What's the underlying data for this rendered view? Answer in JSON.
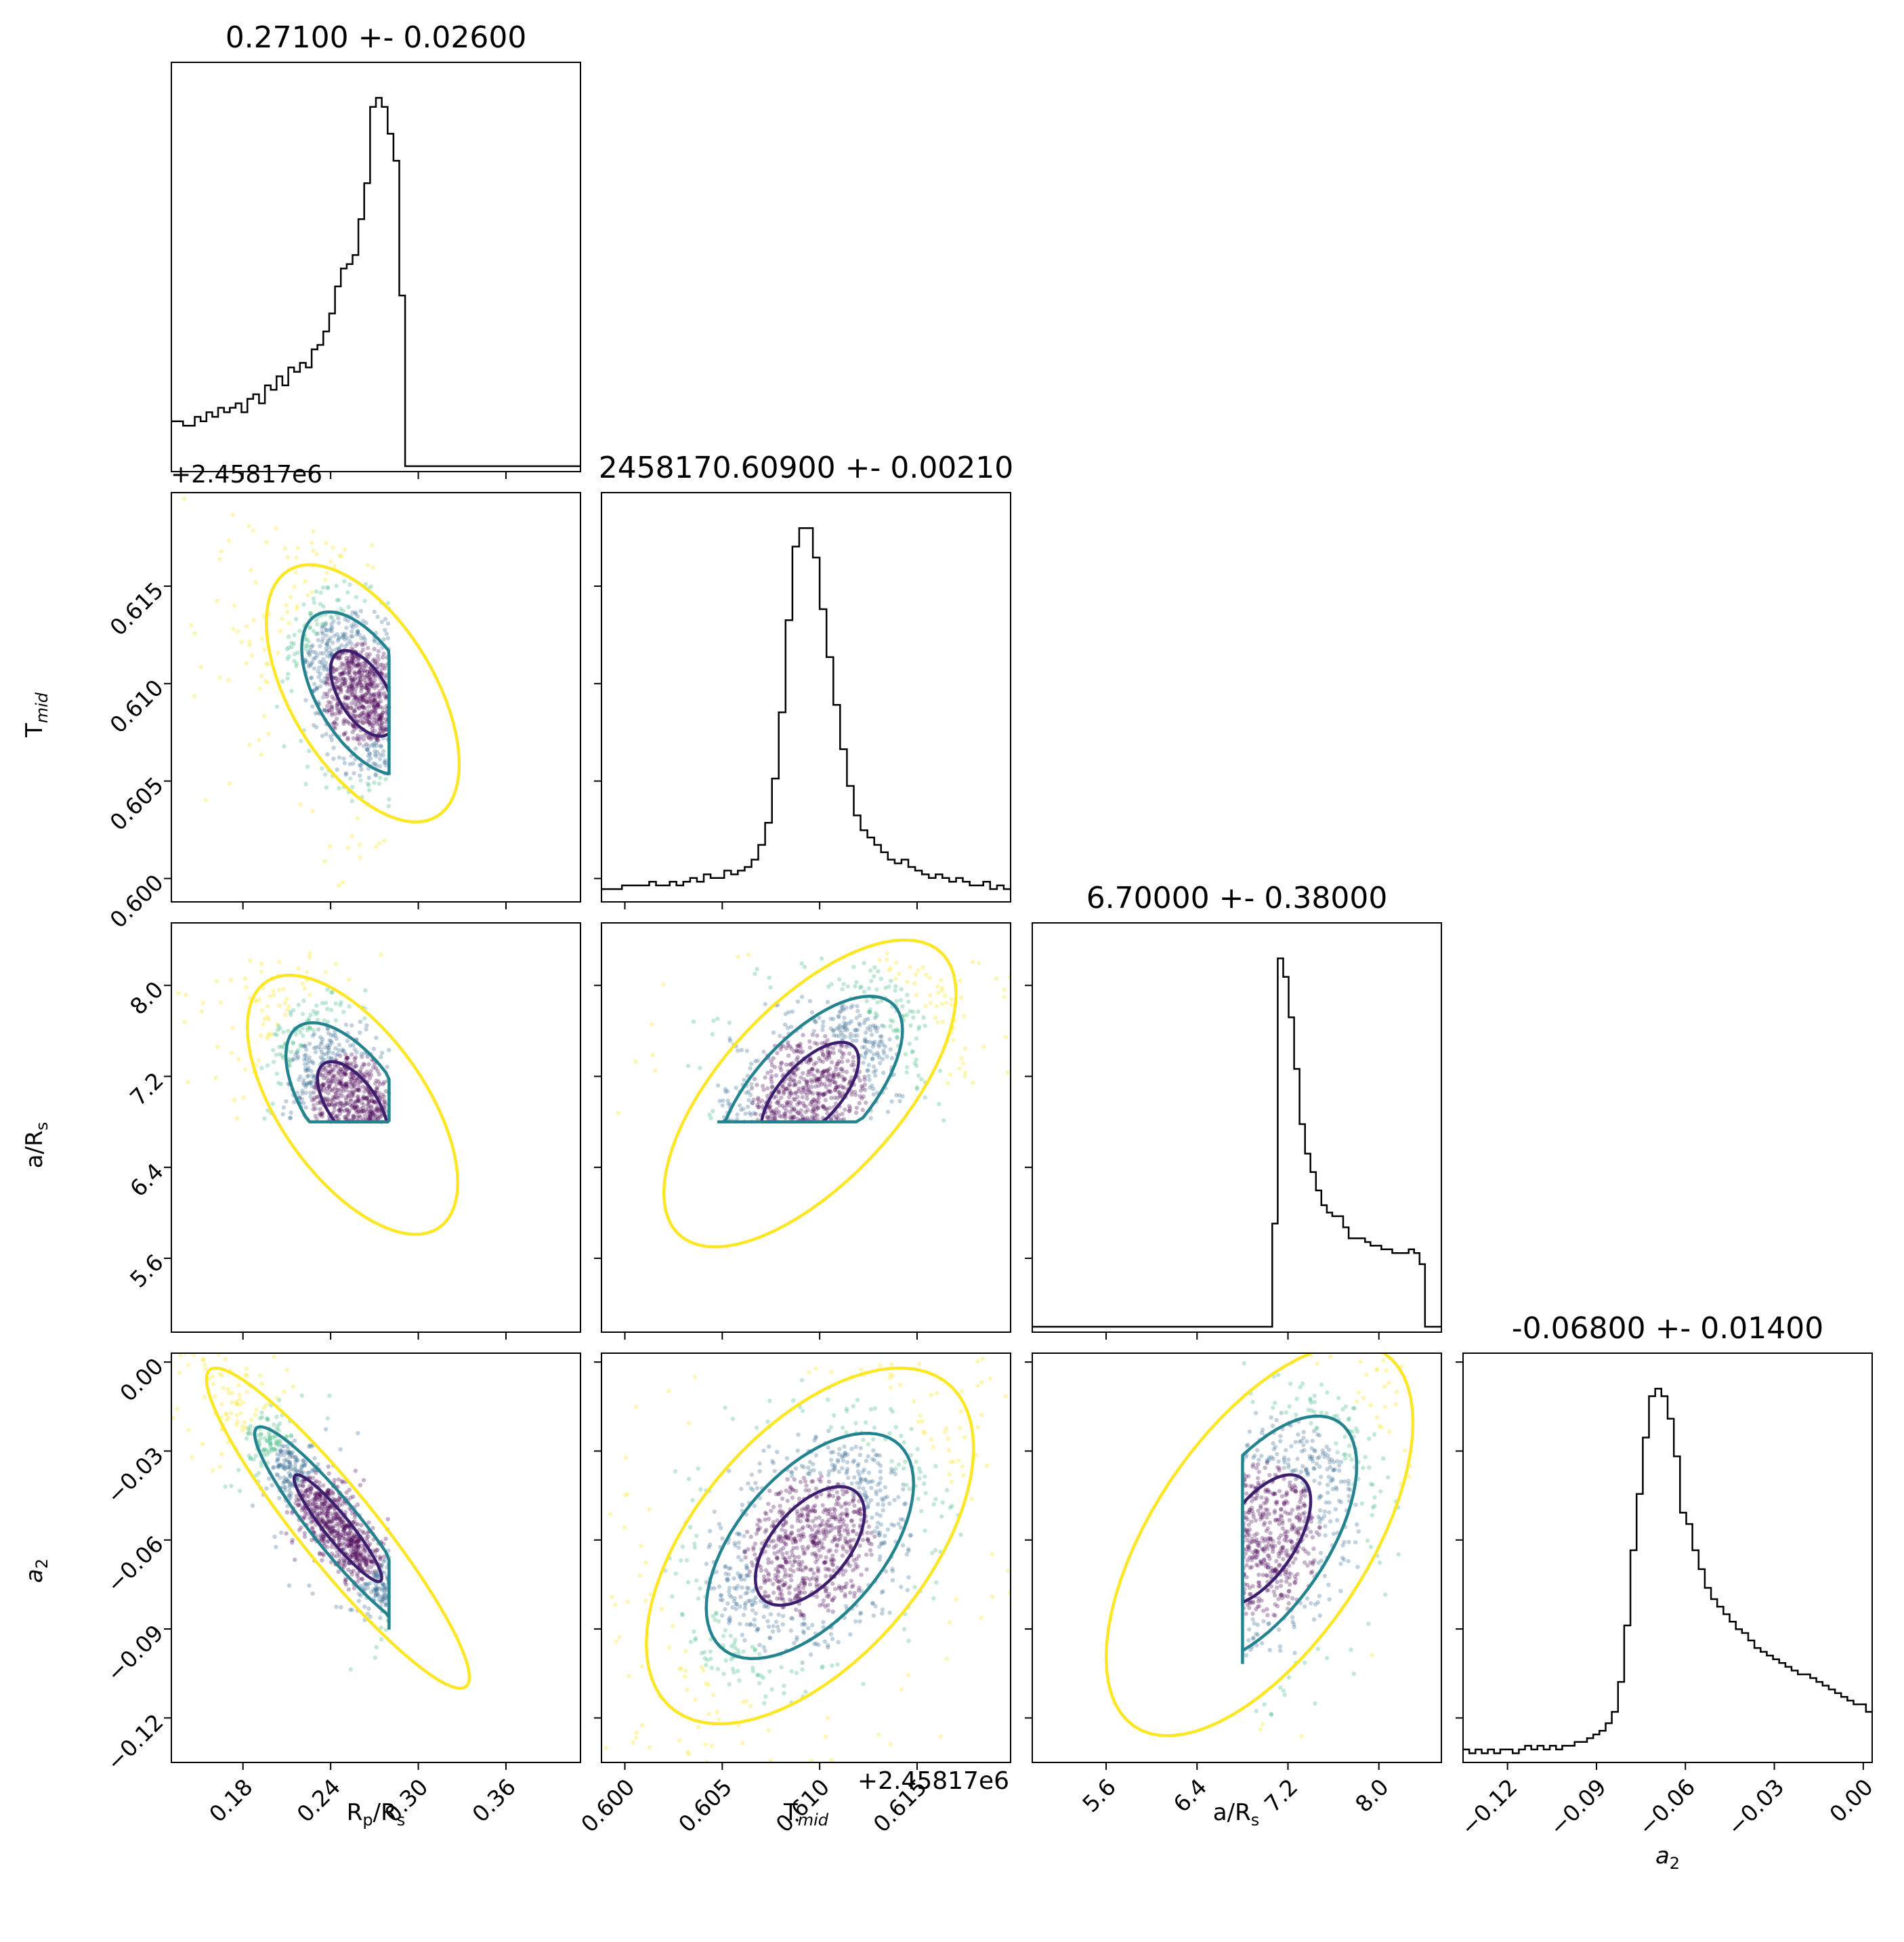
{
  "chart_data": {
    "type": "corner",
    "parameters": [
      "R_p/R_s",
      "T_mid",
      "a/R_s",
      "a_2"
    ],
    "axis_labels": [
      {
        "main": "R",
        "sub": "p",
        "tail": "/R",
        "sub2": "s"
      },
      {
        "main": "T",
        "sub": "mid",
        "tail": "",
        "sub2": ""
      },
      {
        "main": "a/R",
        "sub": "s",
        "tail": "",
        "sub2": ""
      },
      {
        "main": "a",
        "sub": "2",
        "tail": "",
        "sub2": ""
      }
    ],
    "titles": [
      "0.27100 +- 0.02600",
      "2458170.60900 +- 0.00210",
      "6.70000 +- 0.38000",
      "-0.06800 +- 0.01400"
    ],
    "offset_text": "+2.45817e6",
    "ranges": [
      [
        0.131,
        0.411
      ],
      [
        0.5988,
        0.6198
      ],
      [
        4.95,
        8.55
      ],
      [
        -0.135,
        0.003
      ]
    ],
    "ticks": [
      {
        "values": [
          0.18,
          0.24,
          0.3,
          0.36
        ],
        "labels": [
          "0.18",
          "0.24",
          "0.30",
          "0.36"
        ]
      },
      {
        "values": [
          0.6,
          0.605,
          0.61,
          0.615
        ],
        "labels": [
          "0.600",
          "0.605",
          "0.610",
          "0.615"
        ]
      },
      {
        "values": [
          5.6,
          6.4,
          7.2,
          8.0
        ],
        "labels": [
          "5.6",
          "6.4",
          "7.2",
          "8.0"
        ]
      },
      {
        "values": [
          -0.12,
          -0.09,
          -0.06,
          -0.03,
          0.0
        ],
        "labels": [
          "−0.12",
          "−0.09",
          "−0.06",
          "−0.03",
          "0.00"
        ]
      }
    ],
    "histograms": [
      {
        "x0": 0.131,
        "x1": 0.411,
        "counts": [
          10,
          10,
          9,
          9,
          11,
          10,
          12,
          11,
          13,
          12,
          13,
          14,
          12,
          15,
          16,
          14,
          18,
          17,
          20,
          18,
          22,
          21,
          23,
          22,
          26,
          27,
          30,
          34,
          40,
          44,
          45,
          47,
          55,
          63,
          80,
          82,
          80,
          74,
          68,
          38,
          0,
          0,
          0,
          0,
          0,
          0,
          0,
          0,
          0,
          0,
          0,
          0,
          0,
          0,
          0,
          0,
          0,
          0,
          0,
          0,
          0,
          0,
          0,
          0,
          0,
          0,
          0,
          0,
          0,
          0
        ]
      },
      {
        "x0": 0.5988,
        "x1": 0.6198,
        "counts": [
          2,
          2,
          2,
          3,
          3,
          3,
          3,
          4,
          3,
          3,
          4,
          3,
          4,
          5,
          4,
          6,
          5,
          5,
          7,
          6,
          7,
          8,
          10,
          14,
          20,
          32,
          50,
          75,
          95,
          100,
          100,
          92,
          78,
          65,
          52,
          40,
          30,
          22,
          18,
          16,
          14,
          12,
          10,
          9,
          10,
          8,
          7,
          6,
          5,
          6,
          5,
          4,
          5,
          4,
          3,
          3,
          4,
          2,
          3,
          2
        ]
      },
      {
        "x0": 4.95,
        "x1": 8.55,
        "counts": [
          0,
          0,
          0,
          0,
          0,
          0,
          0,
          0,
          0,
          0,
          0,
          0,
          0,
          0,
          0,
          0,
          0,
          0,
          0,
          0,
          0,
          0,
          0,
          0,
          0,
          0,
          0,
          0,
          0,
          0,
          0,
          0,
          0,
          0,
          0,
          0,
          0,
          0,
          0,
          0,
          0,
          0,
          0,
          0,
          28,
          100,
          95,
          84,
          70,
          55,
          47,
          42,
          37,
          33,
          31,
          30,
          30,
          27,
          24,
          24,
          24,
          23,
          22,
          22,
          21,
          21,
          20,
          20,
          20,
          21,
          20,
          17,
          0,
          0,
          0
        ]
      },
      {
        "x0": -0.135,
        "x1": 0.003,
        "counts": [
          2,
          1,
          2,
          1,
          2,
          1,
          2,
          2,
          1,
          2,
          3,
          2,
          3,
          2,
          3,
          2,
          3,
          3,
          4,
          4,
          5,
          6,
          7,
          9,
          12,
          20,
          35,
          55,
          70,
          85,
          96,
          98,
          96,
          90,
          80,
          65,
          62,
          55,
          50,
          45,
          42,
          40,
          38,
          36,
          34,
          33,
          31,
          29,
          28,
          27,
          26,
          25,
          24,
          23,
          22,
          22,
          21,
          20,
          19,
          18,
          17,
          16,
          15,
          14,
          14,
          12
        ]
      }
    ],
    "scatter": [
      {
        "row": 1,
        "col": 0,
        "mean": [
          0.262,
          0.6095
        ],
        "sd": [
          0.022,
          0.0022
        ],
        "rho": -0.55,
        "clip_x": [
          0.131,
          0.28
        ]
      },
      {
        "row": 2,
        "col": 0,
        "mean": [
          0.255,
          6.95
        ],
        "sd": [
          0.024,
          0.38
        ],
        "rho": -0.6,
        "clip_x": [
          0.131,
          0.28
        ],
        "clip_y": [
          6.8,
          8.3
        ]
      },
      {
        "row": 2,
        "col": 1,
        "mean": [
          0.6095,
          7.05
        ],
        "sd": [
          0.0025,
          0.45
        ],
        "rho": 0.65,
        "clip_y": [
          6.8,
          8.3
        ]
      },
      {
        "row": 3,
        "col": 0,
        "mean": [
          0.245,
          -0.056
        ],
        "sd": [
          0.03,
          0.018
        ],
        "rho": -0.93,
        "clip_x": [
          0.131,
          0.28
        ]
      },
      {
        "row": 3,
        "col": 1,
        "mean": [
          0.6095,
          -0.062
        ],
        "sd": [
          0.0028,
          0.02
        ],
        "rho": 0.55
      },
      {
        "row": 3,
        "col": 2,
        "mean": [
          6.95,
          -0.06
        ],
        "sd": [
          0.45,
          0.022
        ],
        "rho": 0.6,
        "clip_x": [
          6.8,
          8.3
        ]
      }
    ],
    "contour_levels": [
      "inner",
      "middle",
      "outer"
    ],
    "colors": {
      "inner": "#3b1f6e",
      "middle": "#23838e",
      "outer": "#fde725",
      "hist": "#000000",
      "points": [
        "#440154",
        "#31688e",
        "#35b779",
        "#fde725"
      ]
    }
  }
}
